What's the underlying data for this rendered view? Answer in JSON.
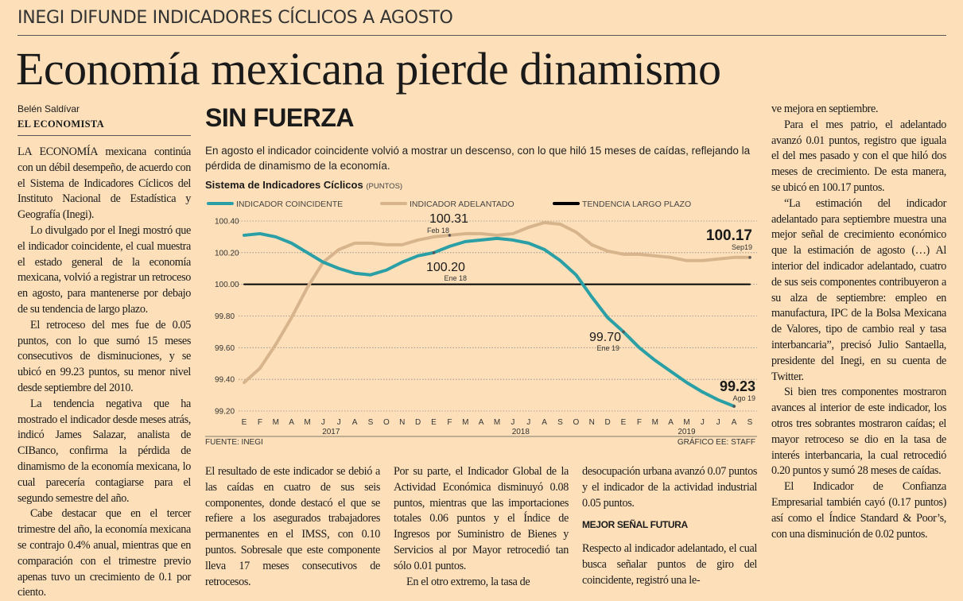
{
  "header": {
    "kicker": "INEGI DIFUNDE INDICADORES CÍCLICOS A AGOSTO",
    "headline": "Economía mexicana pierde dinamismo",
    "author": "Belén Saldívar",
    "outlet": "EL ECONOMISTA"
  },
  "article": {
    "left": [
      "LA ECONOMÍA mexicana continúa con un débil desempeño, de acuerdo con el Sistema de Indicadores Cíclicos del Instituto Nacional de Estadística y Geografía (Inegi).",
      "Lo divulgado por el Inegi mostró que el indicador coincidente, el cual muestra el estado general de la economía mexicana, volvió a registrar un retroceso en agosto, para mantenerse por debajo de su tendencia de largo plazo.",
      "El retroceso del mes fue de 0.05 puntos, con lo que sumó 15 meses consecutivos de disminuciones, y se ubicó en 99.23 puntos, su menor nivel desde septiembre del 2010.",
      "La tendencia negativa que ha mostrado el indicador desde meses atrás, indicó James Salazar, analista de CIBanco, confirma la pérdida de dinamismo de la economía mexicana, lo cual parecería contagiarse para el segundo semestre del año.",
      "Cabe destacar que en el tercer trimestre del año, la economía mexicana se contrajo 0.4% anual, mientras que en comparación con el trimestre previo apenas tuvo un crecimiento de 0.1 por ciento."
    ],
    "bottom_1": [
      "El resultado de este indicador se debió a las caídas en cuatro de sus seis componentes, donde destacó el que se refiere a los asegurados trabajadores permanentes en el IMSS, con 0.10 puntos. Sobresale que este componente lleva 17 meses consecutivos de retrocesos."
    ],
    "bottom_2": [
      "Por su parte, el Indicador Global de la Actividad Económica disminuyó 0.08 puntos, mientras que las importaciones totales 0.06 puntos y el Índice de Ingresos por Suministro de Bienes y Servicios al por Mayor retrocedió tan sólo 0.01 puntos.",
      "En el otro extremo, la tasa de"
    ],
    "bottom_3": [
      "desocupación urbana avanzó 0.07 puntos y el indicador de la actividad industrial 0.05 puntos."
    ],
    "bottom_3_subhead": "MEJOR SEÑAL FUTURA",
    "bottom_3b": [
      "Respecto al indicador adelantado, el cual busca señalar puntos de giro del coincidente, registró una le-"
    ],
    "right": [
      "ve mejora en septiembre.",
      "Para el mes patrio, el adelantado avanzó 0.01 puntos, registro que iguala el del mes pasado y con el que hiló dos meses de crecimiento. De esta manera, se ubicó en 100.17 puntos.",
      "“La estimación del indicador adelantado para septiembre muestra una mejor señal de crecimiento económico que la estimación de agosto (…) Al interior del indicador adelantado, cuatro de sus seis componentes contribuyeron a su alza de septiembre: empleo en manufactura, IPC de la Bolsa Mexicana de Valores, tipo de cambio real y tasa interbancaria”, precisó Julio Santaella, presidente del Inegi, en su cuenta de Twitter.",
      "Si bien tres componentes mostraron avances al interior de este indicador, los otros tres sobrantes mostraron caídas; el mayor retroceso se dio en la tasa de interés interbancaria, la cual retrocedió 0.20 puntos y sumó 28 meses de caídas.",
      "El Indicador de Confianza Empresarial también cayó (0.17 puntos) así como el Índice Standard & Poor’s, con una disminución de 0.02 puntos."
    ]
  },
  "chart_data": {
    "type": "line",
    "title": "SIN FUERZA",
    "subtitle": "En agosto el indicador coincidente volvió a mostrar un descenso, con lo que hiló 15 meses de caídas, reflejando la pérdida de dinamismo de la economía.",
    "chart_label": "Sistema de Indicadores Cíclicos",
    "unit_label": "(PUNTOS)",
    "categories": [
      "E",
      "F",
      "M",
      "A",
      "M",
      "J",
      "J",
      "A",
      "S",
      "O",
      "N",
      "D",
      "E",
      "F",
      "M",
      "A",
      "M",
      "J",
      "J",
      "A",
      "S",
      "O",
      "N",
      "D",
      "E",
      "F",
      "M",
      "A",
      "M",
      "J",
      "J",
      "A",
      "S"
    ],
    "year_labels": [
      "2017",
      "2018",
      "2019"
    ],
    "series": [
      {
        "name": "INDICADOR COINCIDENTE",
        "color": "#2a9fa6",
        "values": [
          100.31,
          100.32,
          100.3,
          100.26,
          100.2,
          100.14,
          100.1,
          100.07,
          100.06,
          100.09,
          100.14,
          100.18,
          100.2,
          100.24,
          100.27,
          100.28,
          100.29,
          100.28,
          100.26,
          100.22,
          100.15,
          100.06,
          99.92,
          99.79,
          99.7,
          99.6,
          99.52,
          99.45,
          99.38,
          99.32,
          99.27,
          99.23,
          null
        ]
      },
      {
        "name": "INDICADOR ADELANTADO",
        "color": "#d8b48c",
        "values": [
          99.38,
          99.47,
          99.62,
          99.79,
          99.98,
          100.14,
          100.22,
          100.26,
          100.26,
          100.25,
          100.25,
          100.28,
          100.3,
          100.31,
          100.32,
          100.32,
          100.31,
          100.32,
          100.36,
          100.39,
          100.38,
          100.33,
          100.25,
          100.21,
          100.19,
          100.19,
          100.18,
          100.17,
          100.15,
          100.15,
          100.16,
          100.17,
          100.17
        ]
      },
      {
        "name": "TENDENCIA LARGO PLAZO",
        "color": "#000000",
        "values": [
          100,
          100,
          100,
          100,
          100,
          100,
          100,
          100,
          100,
          100,
          100,
          100,
          100,
          100,
          100,
          100,
          100,
          100,
          100,
          100,
          100,
          100,
          100,
          100,
          100,
          100,
          100,
          100,
          100,
          100,
          100,
          100,
          100
        ]
      }
    ],
    "ylim": [
      99.2,
      100.4
    ],
    "yticks": [
      {
        "value": 99.2,
        "label": "99.20"
      },
      {
        "value": 99.4,
        "label": "99.40"
      },
      {
        "value": 99.6,
        "label": "99.60"
      },
      {
        "value": 99.8,
        "label": "99.80"
      },
      {
        "value": 100.0,
        "label": "100.00"
      },
      {
        "value": 100.2,
        "label": "100.20"
      },
      {
        "value": 100.4,
        "label": "100.40"
      }
    ],
    "grid": true,
    "annotations": [
      {
        "text": "100.31",
        "date": "Feb 18"
      },
      {
        "text": "100.20",
        "date": "Ene 18"
      },
      {
        "text": "100.17",
        "date": "Sep19"
      },
      {
        "text": "99.70",
        "date": "Ene 19"
      },
      {
        "text": "99.23",
        "date": "Ago 19"
      }
    ],
    "source": "FUENTE: INEGI",
    "credit": "GRÁFICO EE: STAFF"
  }
}
